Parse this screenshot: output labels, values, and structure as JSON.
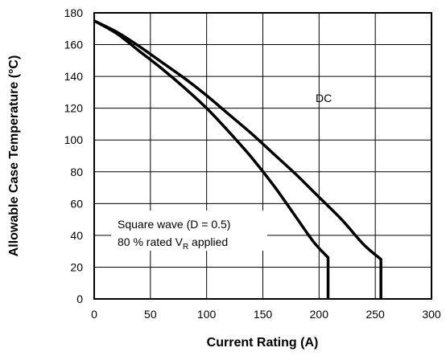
{
  "chart_data": {
    "type": "line",
    "xlabel": "Current Rating (A)",
    "ylabel": "Allowable Case Temperature (°C)",
    "xlim": [
      0,
      300
    ],
    "ylim": [
      0,
      180
    ],
    "xticks": [
      "0",
      "50",
      "100",
      "150",
      "200",
      "250",
      "300"
    ],
    "yticks": [
      "0",
      "20",
      "40",
      "60",
      "80",
      "100",
      "120",
      "140",
      "160",
      "180"
    ],
    "grid": true,
    "series": [
      {
        "name": "DC",
        "x": [
          0,
          20,
          40,
          60,
          80,
          100,
          120,
          140,
          160,
          180,
          200,
          220,
          240,
          255,
          255
        ],
        "y": [
          175,
          168,
          159,
          149,
          139,
          128,
          116,
          104,
          91,
          78,
          64,
          50,
          34,
          25,
          0
        ]
      },
      {
        "name": "Square wave (D = 0.5)",
        "x": [
          0,
          20,
          40,
          60,
          80,
          100,
          120,
          140,
          160,
          180,
          195,
          208,
          208
        ],
        "y": [
          175,
          167,
          156,
          145,
          133,
          120,
          105,
          89,
          71,
          51,
          36,
          26,
          0
        ]
      }
    ],
    "annotations": {
      "dc_label": "DC",
      "square_line1": "Square wave (D = 0.5)",
      "square_line2_prefix": "80 % rated V",
      "square_line2_sub": "R",
      "square_line2_suffix": " applied"
    }
  }
}
